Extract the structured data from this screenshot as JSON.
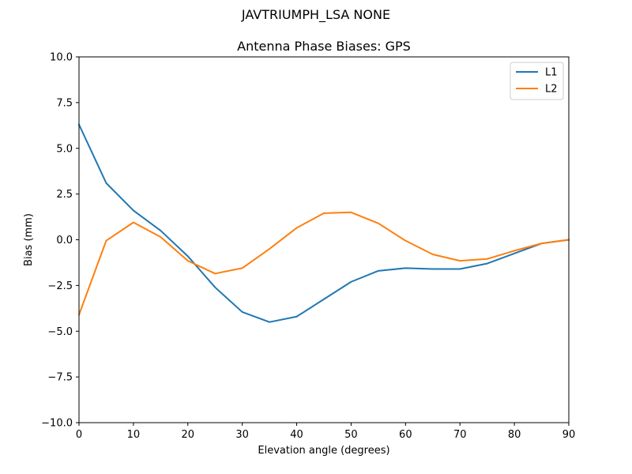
{
  "figure": {
    "suptitle": "JAVTRIUMPH_LSA  NONE"
  },
  "chart_data": {
    "type": "line",
    "title": "Antenna Phase Biases: GPS",
    "xlabel": "Elevation angle (degrees)",
    "ylabel": "Bias (mm)",
    "xlim": [
      0,
      90
    ],
    "ylim": [
      -10,
      10
    ],
    "xticks": [
      0,
      10,
      20,
      30,
      40,
      50,
      60,
      70,
      80,
      90
    ],
    "yticks": [
      -10.0,
      -7.5,
      -5.0,
      -2.5,
      0.0,
      2.5,
      5.0,
      7.5,
      10.0
    ],
    "xtick_labels": [
      "0",
      "10",
      "20",
      "30",
      "40",
      "50",
      "60",
      "70",
      "80",
      "90"
    ],
    "ytick_labels": [
      "−10.0",
      "−7.5",
      "−5.0",
      "−2.5",
      "0.0",
      "2.5",
      "5.0",
      "7.5",
      "10.0"
    ],
    "grid": false,
    "legend_position": "top-right",
    "x": [
      0,
      5,
      10,
      15,
      20,
      25,
      30,
      35,
      40,
      45,
      50,
      55,
      60,
      65,
      70,
      75,
      80,
      85,
      90
    ],
    "series": [
      {
        "name": "L1",
        "color": "#1f77b4",
        "values": [
          6.3,
          3.1,
          1.6,
          0.5,
          -0.9,
          -2.6,
          -3.95,
          -4.5,
          -4.2,
          -3.25,
          -2.3,
          -1.7,
          -1.55,
          -1.6,
          -1.6,
          -1.3,
          -0.75,
          -0.2,
          0.0
        ]
      },
      {
        "name": "L2",
        "color": "#ff7f0e",
        "values": [
          -4.1,
          -0.05,
          0.95,
          0.15,
          -1.15,
          -1.85,
          -1.55,
          -0.5,
          0.65,
          1.45,
          1.5,
          0.9,
          -0.05,
          -0.8,
          -1.15,
          -1.05,
          -0.6,
          -0.2,
          0.0
        ]
      }
    ]
  }
}
